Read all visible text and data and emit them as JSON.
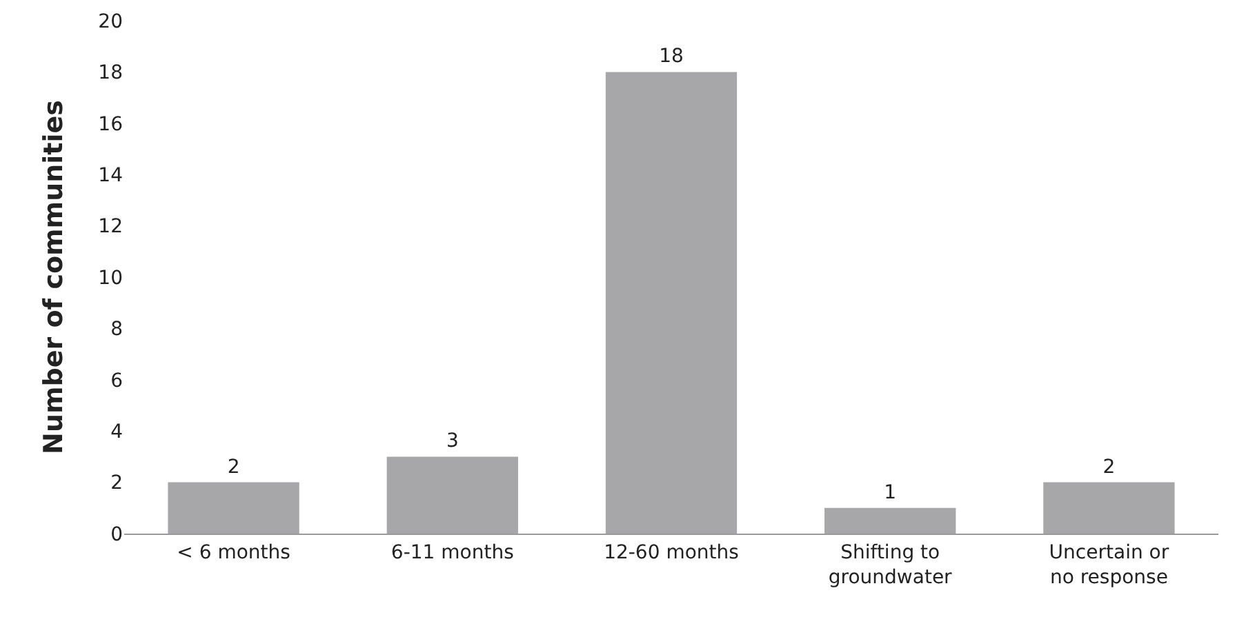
{
  "chart_data": {
    "type": "bar",
    "ylabel": "Number of communities",
    "categories": [
      "< 6 months",
      "6-11 months",
      "12-60 months",
      "Shifting to groundwater",
      "Uncertain or no response"
    ],
    "values": [
      2,
      3,
      18,
      1,
      2
    ],
    "color": "#a7a7a9",
    "ylim": [
      0,
      20
    ],
    "yticks": [
      0,
      2,
      4,
      6,
      8,
      10,
      12,
      14,
      16,
      18,
      20
    ],
    "grid": false,
    "data_labels": true
  }
}
